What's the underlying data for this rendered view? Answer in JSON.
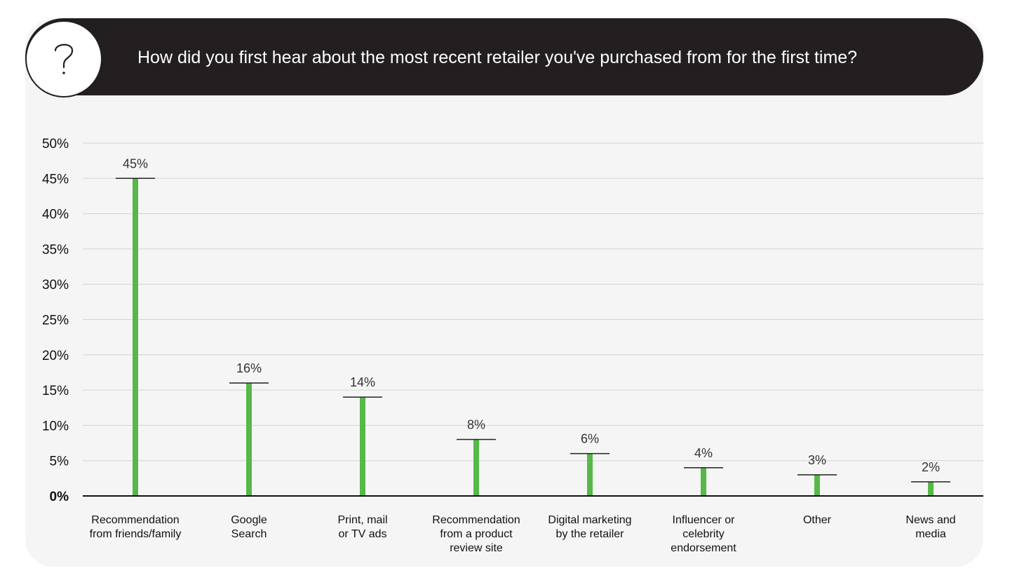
{
  "header": {
    "icon": "question-mark-icon",
    "title": "How did you first hear about the most recent retailer you've purchased from for the first time?"
  },
  "colors": {
    "bar": "#56b848",
    "header_bg": "#231f20",
    "card_bg": "#f5f5f5",
    "grid": "#d4d4d4"
  },
  "chart_data": {
    "type": "bar",
    "title": "How did you first hear about the most recent retailer you've purchased from for the first time?",
    "xlabel": "",
    "ylabel": "",
    "ylim": [
      0,
      50
    ],
    "yticks": [
      "0%",
      "5%",
      "10%",
      "15%",
      "20%",
      "25%",
      "30%",
      "35%",
      "40%",
      "45%",
      "50%"
    ],
    "grid": true,
    "categories": [
      [
        "Recommendation",
        "from friends/family"
      ],
      [
        "Google",
        "Search"
      ],
      [
        "Print, mail",
        "or TV ads"
      ],
      [
        "Recommendation",
        "from a product",
        "review site"
      ],
      [
        "Digital marketing",
        "by the retailer"
      ],
      [
        "Influencer or",
        "celebrity",
        "endorsement"
      ],
      [
        "Other"
      ],
      [
        "News and",
        "media"
      ]
    ],
    "values": [
      45,
      16,
      14,
      8,
      6,
      4,
      3,
      2
    ],
    "value_labels": [
      "45%",
      "16%",
      "14%",
      "8%",
      "6%",
      "4%",
      "3%",
      "2%"
    ]
  }
}
